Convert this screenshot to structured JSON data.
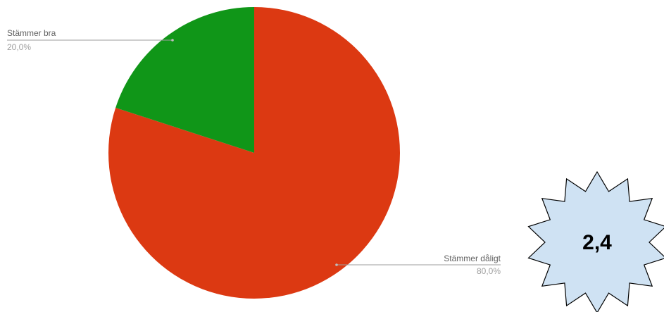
{
  "chart_data": {
    "type": "pie",
    "slices": [
      {
        "label": "Stämmer dåligt",
        "value": 80.0,
        "percent_label": "80,0%",
        "color": "#dc3912"
      },
      {
        "label": "Stämmer bra",
        "value": 20.0,
        "percent_label": "20,0%",
        "color": "#109618"
      }
    ],
    "start_angle_deg": 0,
    "direction": "clockwise",
    "legend": "labeled-leaders"
  },
  "badge": {
    "value": "2,4",
    "fill_color": "#cfe2f3",
    "stroke_color": "#000000"
  }
}
